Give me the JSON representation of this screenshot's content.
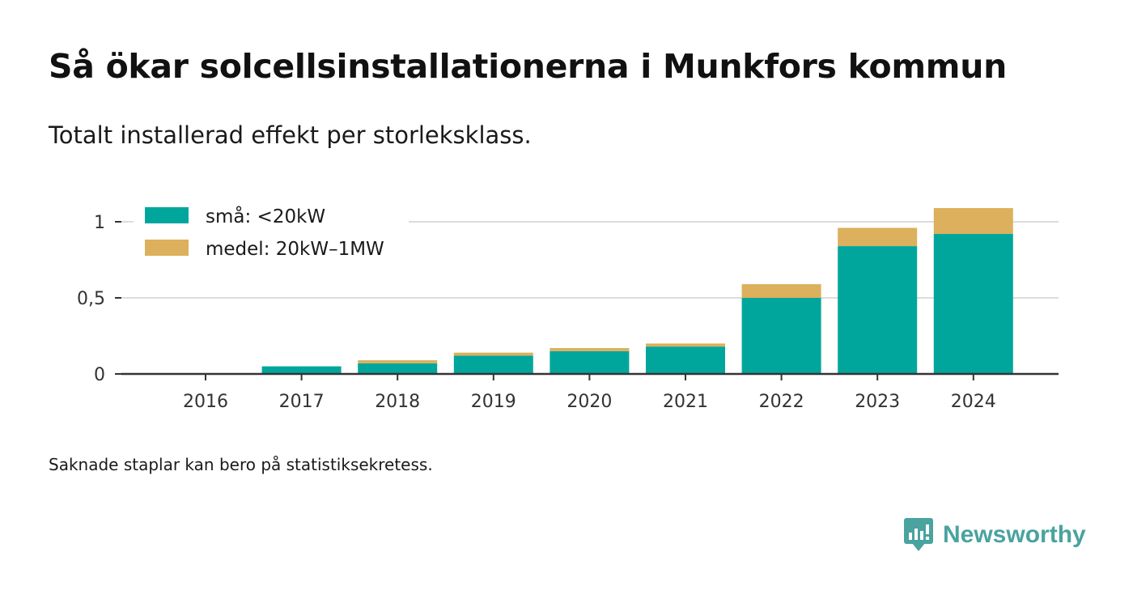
{
  "title": "Så ökar solcellsinstallationerna i Munkfors kommun",
  "subtitle": "Totalt installerad effekt per storleksklass.",
  "note": "Saknade staplar kan bero på statistiksekretess.",
  "brand": {
    "name": "Newsworthy",
    "icon": "newsworthy-logo-icon",
    "color": "#4aa39f"
  },
  "chart_data": {
    "type": "bar",
    "stacked": true,
    "categories": [
      "2016",
      "2017",
      "2018",
      "2019",
      "2020",
      "2021",
      "2022",
      "2023",
      "2024"
    ],
    "series": [
      {
        "name": "små: <20kW",
        "color": "#00a69c",
        "values": [
          0,
          0.05,
          0.07,
          0.12,
          0.15,
          0.18,
          0.5,
          0.84,
          0.92
        ]
      },
      {
        "name": "medel: 20kW–1MW",
        "color": "#dcb05c",
        "values": [
          0,
          0,
          0.02,
          0.02,
          0.02,
          0.02,
          0.09,
          0.12,
          0.17
        ]
      }
    ],
    "ylim": [
      0,
      1.1
    ],
    "yticks": [
      {
        "value": 0,
        "label": "0"
      },
      {
        "value": 0.5,
        "label": "0,5"
      },
      {
        "value": 1,
        "label": "1"
      }
    ],
    "xlabel": "",
    "ylabel": "",
    "grid": true,
    "legend_position": "top-left"
  }
}
